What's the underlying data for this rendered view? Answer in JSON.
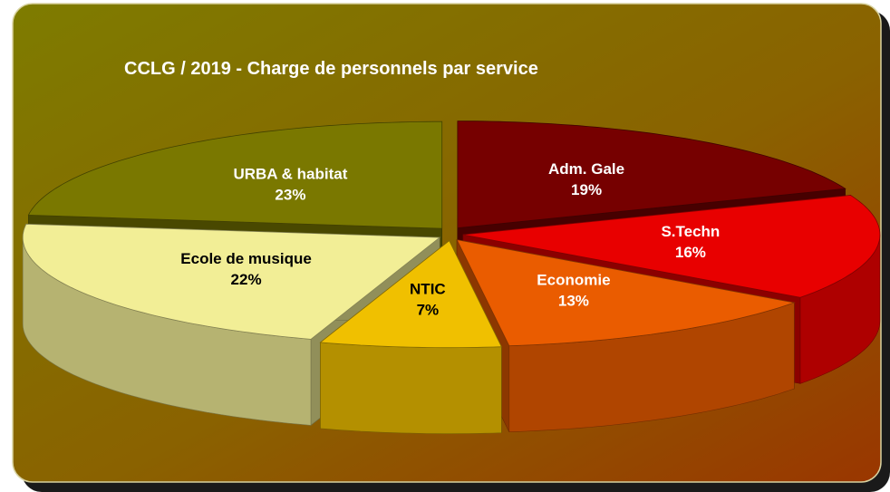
{
  "chart_data": {
    "type": "pie",
    "title": "CCLG / 2019 - Charge de personnels par service",
    "categories": [
      "Adm. Gale",
      "S.Techn",
      "Economie",
      "NTIC",
      "Ecole de musique",
      "URBA & habitat"
    ],
    "values": [
      19,
      16,
      13,
      7,
      22,
      23
    ],
    "value_labels": [
      "19%",
      "16%",
      "13%",
      "7%",
      "22%",
      "23%"
    ],
    "colors": [
      "#760000",
      "#e80000",
      "#ea5c00",
      "#f0c000",
      "#f2ee96",
      "#7a7800"
    ]
  }
}
